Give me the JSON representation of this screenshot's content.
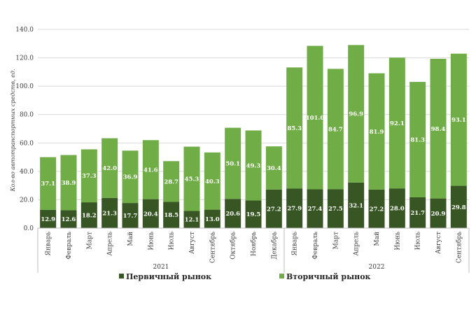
{
  "chart_data": {
    "type": "bar",
    "stacked": true,
    "title": "",
    "ylabel": "Кол-во автотранспортных средств, ед.",
    "ylim": [
      0,
      140
    ],
    "yticks": [
      "0.0",
      "20.0",
      "40.0",
      "60.0",
      "80.0",
      "100.0",
      "120.0",
      "140.0"
    ],
    "categories": [
      "Январь",
      "Февраль",
      "Март",
      "Апрель",
      "Май",
      "Июнь",
      "Июль",
      "Август",
      "Сентябрь",
      "Октябрь",
      "Ноябрь",
      "Декабрь",
      "Январь",
      "Февраль",
      "Март",
      "Апрель",
      "Май",
      "Июнь",
      "Июль",
      "Август",
      "Сентябрь"
    ],
    "groups": [
      {
        "label": "2021",
        "count": 12
      },
      {
        "label": "2022",
        "count": 9
      }
    ],
    "series": [
      {
        "name": "Первичный рынок",
        "color": "#375623",
        "values": [
          12.9,
          12.6,
          18.2,
          21.3,
          17.7,
          20.4,
          18.5,
          12.1,
          13.0,
          20.6,
          19.5,
          27.2,
          27.9,
          27.4,
          27.5,
          32.1,
          27.2,
          28.0,
          21.7,
          20.9,
          29.8
        ]
      },
      {
        "name": "Вторичный рынок",
        "color": "#70ad47",
        "values": [
          37.1,
          38.9,
          37.3,
          42.0,
          36.9,
          41.6,
          28.7,
          45.3,
          40.3,
          50.1,
          49.3,
          30.4,
          85.3,
          101.0,
          84.7,
          96.9,
          81.9,
          92.1,
          81.3,
          98.4,
          93.1
        ]
      }
    ],
    "legend": {
      "position": "bottom",
      "items": [
        "Первичный рынок",
        "Вторичный рынок"
      ]
    }
  }
}
